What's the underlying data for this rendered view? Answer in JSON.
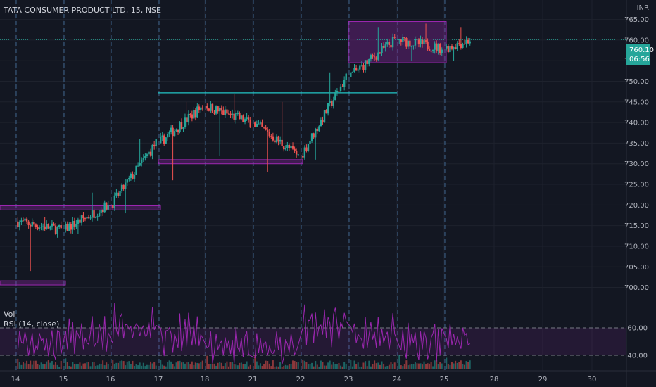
{
  "header": {
    "title": "TATA CONSUMER PRODUCT LTD, 15, NSE",
    "currency": "INR"
  },
  "last_price": {
    "value": "760.10",
    "countdown": "06:56"
  },
  "indicators": {
    "vol_label": "Vol",
    "rsi_label": "RSI (14, close)"
  },
  "chart_data": {
    "type": "candlestick",
    "x_labels": [
      "14",
      "15",
      "16",
      "17",
      "18",
      "21",
      "22",
      "23",
      "24",
      "25",
      "28",
      "29",
      "30"
    ],
    "y_ticks": [
      "765.00",
      "760.00",
      "755.00",
      "750.00",
      "745.00",
      "740.00",
      "735.00",
      "730.00",
      "725.00",
      "720.00",
      "715.00",
      "710.00",
      "705.00",
      "700.00"
    ],
    "ylim": [
      696,
      768
    ],
    "price_path": [
      {
        "day": "14",
        "open": 716,
        "close": 714,
        "high": 717,
        "low": 704
      },
      {
        "day": "15",
        "open": 714,
        "close": 720,
        "high": 723,
        "low": 713
      },
      {
        "day": "16",
        "open": 720,
        "close": 735,
        "high": 736,
        "low": 718
      },
      {
        "day": "17",
        "open": 735,
        "close": 744,
        "high": 745,
        "low": 726
      },
      {
        "day": "18",
        "open": 744,
        "close": 740,
        "high": 747,
        "low": 732
      },
      {
        "day": "21",
        "open": 740,
        "close": 732,
        "high": 745,
        "low": 728
      },
      {
        "day": "22",
        "open": 732,
        "close": 751,
        "high": 752,
        "low": 731
      },
      {
        "day": "23",
        "open": 751,
        "close": 760,
        "high": 763,
        "low": 752
      },
      {
        "day": "24",
        "open": 760,
        "close": 758,
        "high": 764,
        "low": 755
      },
      {
        "day": "25",
        "open": 758,
        "close": 760,
        "high": 763,
        "low": 755
      }
    ],
    "zones": [
      {
        "from_day": "14",
        "to_day": "17",
        "low": 718.8,
        "high": 719.8
      },
      {
        "from_day": "14",
        "to_day": "15",
        "low": 700.6,
        "high": 701.6
      },
      {
        "from_day": "17",
        "to_day": "22",
        "low": 730.0,
        "high": 731.0
      },
      {
        "from_day": "23",
        "to_day": "25",
        "low": 754.5,
        "high": 764.5
      }
    ],
    "resistance_line": {
      "from_day": "17",
      "to_day": "24",
      "value": 747.2
    },
    "rsi": {
      "ticks": [
        "60.00",
        "40.00"
      ],
      "upper": 60,
      "lower": 40
    },
    "colors": {
      "up": "#26a69a",
      "down": "#ef5350",
      "zone": "#9c27b0",
      "rsi": "#9c27b0",
      "line": "#22c6c6"
    }
  }
}
